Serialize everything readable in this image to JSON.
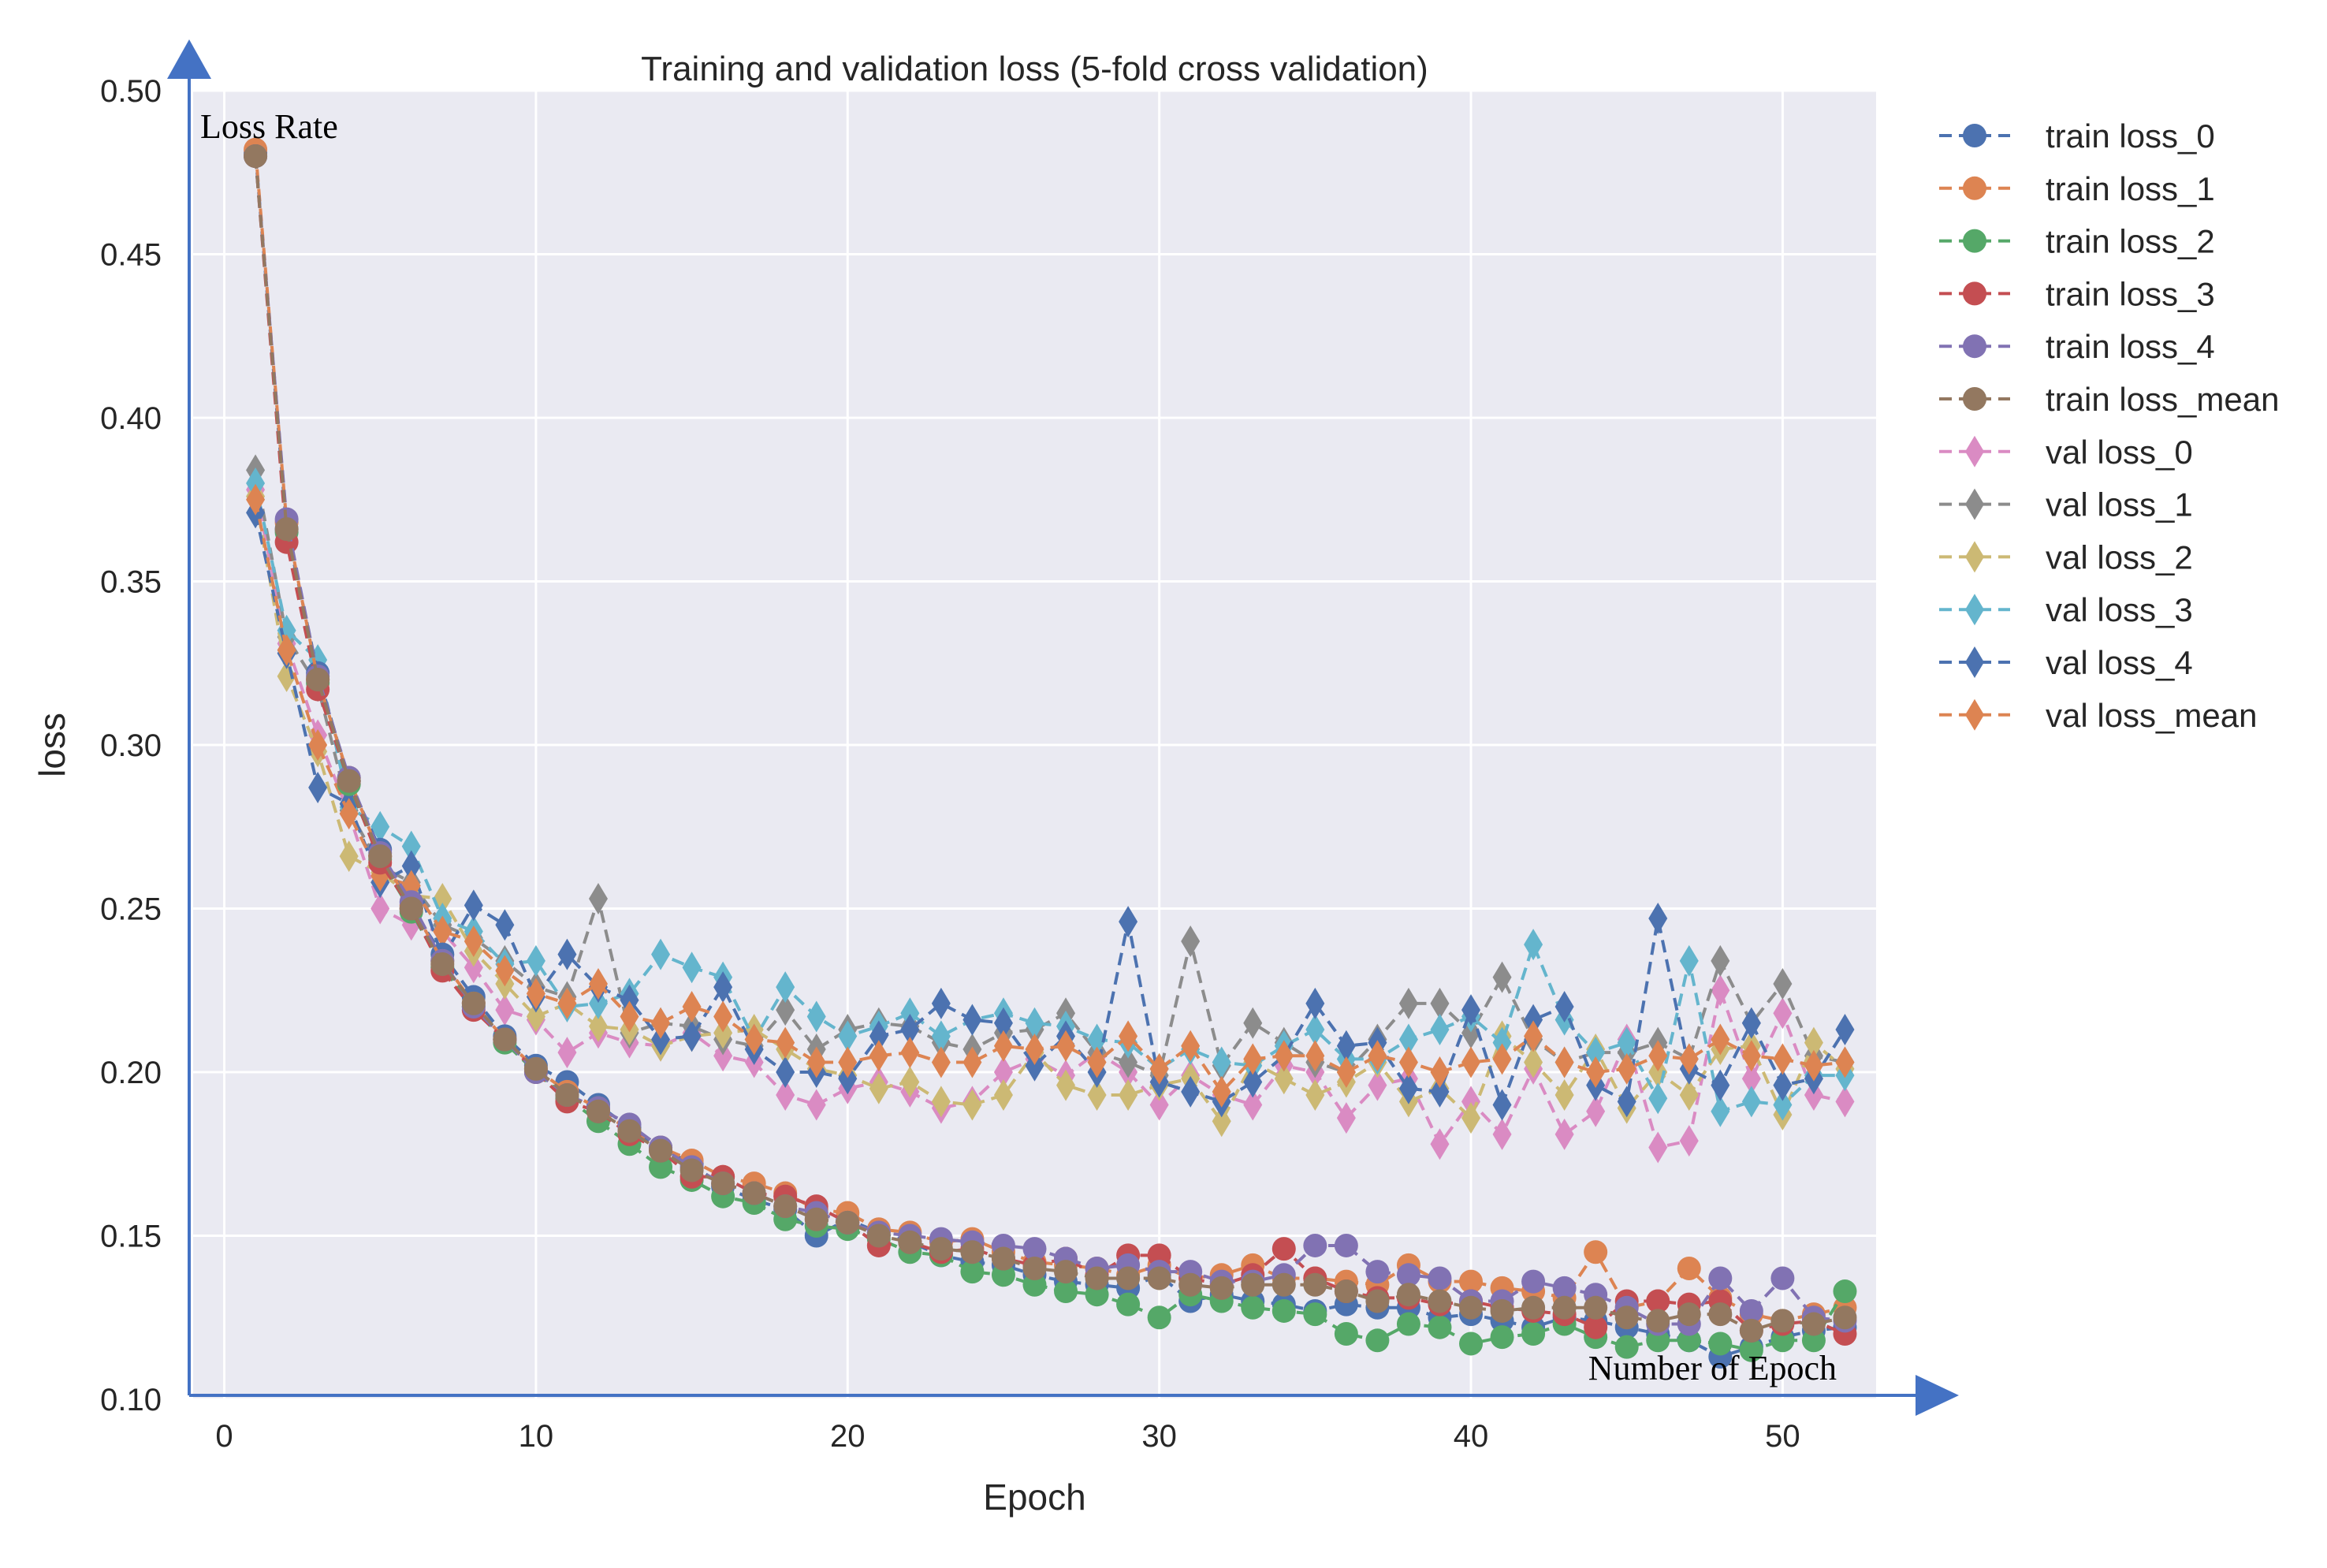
{
  "chart_data": {
    "type": "line",
    "title": "Training and validation loss (5-fold cross validation)",
    "xlabel": "Epoch",
    "ylabel": "loss",
    "xlim": [
      -1,
      53
    ],
    "ylim": [
      0.1,
      0.5
    ],
    "x_ticks": [
      0,
      10,
      20,
      30,
      40,
      50
    ],
    "y_ticks": [
      0.1,
      0.15,
      0.2,
      0.25,
      0.3,
      0.35,
      0.4,
      0.45,
      0.5
    ],
    "y_tick_labels": [
      "0.10",
      "0.15",
      "0.20",
      "0.25",
      "0.30",
      "0.35",
      "0.40",
      "0.45",
      "0.50"
    ],
    "grid": true,
    "legend_position": "outside-right",
    "annotations": {
      "y_axis_arrow_label": "Loss Rate",
      "x_axis_arrow_label": "Number of Epoch",
      "arrow_color": "#4472c4"
    },
    "x": [
      1,
      2,
      3,
      4,
      5,
      6,
      7,
      8,
      9,
      10,
      11,
      12,
      13,
      14,
      15,
      16,
      17,
      18,
      19,
      20,
      21,
      22,
      23,
      24,
      25,
      26,
      27,
      28,
      29,
      30,
      31,
      32,
      33,
      34,
      35,
      36,
      37,
      38,
      39,
      40,
      41,
      42,
      43,
      44,
      45,
      46,
      47,
      48,
      49,
      50,
      51,
      52
    ],
    "series": [
      {
        "name": "train loss_0",
        "color": "#4c72b0",
        "marker": "circle",
        "values": [
          0.481,
          0.366,
          0.322,
          0.289,
          0.268,
          0.25,
          0.236,
          0.223,
          0.211,
          0.202,
          0.197,
          0.19,
          0.183,
          0.177,
          0.172,
          0.165,
          0.161,
          0.158,
          0.15,
          0.155,
          0.151,
          0.148,
          0.144,
          0.142,
          0.141,
          0.138,
          0.136,
          0.135,
          0.134,
          0.138,
          0.13,
          0.132,
          0.13,
          0.129,
          0.127,
          0.129,
          0.128,
          0.128,
          0.125,
          0.126,
          0.124,
          0.122,
          0.125,
          0.124,
          0.122,
          0.12,
          0.118,
          0.113,
          0.116,
          0.119,
          0.121,
          0.122
        ]
      },
      {
        "name": "train loss_1",
        "color": "#dd8452",
        "marker": "circle",
        "values": [
          0.482,
          0.368,
          0.32,
          0.29,
          0.266,
          0.251,
          0.234,
          0.221,
          0.21,
          0.201,
          0.194,
          0.189,
          0.182,
          0.177,
          0.173,
          0.168,
          0.166,
          0.163,
          0.158,
          0.157,
          0.152,
          0.151,
          0.148,
          0.149,
          0.145,
          0.142,
          0.141,
          0.14,
          0.138,
          0.141,
          0.137,
          0.138,
          0.141,
          0.137,
          0.137,
          0.136,
          0.135,
          0.141,
          0.136,
          0.136,
          0.134,
          0.133,
          0.131,
          0.145,
          0.128,
          0.13,
          0.14,
          0.131,
          0.126,
          0.124,
          0.126,
          0.128
        ]
      },
      {
        "name": "train loss_2",
        "color": "#55a868",
        "marker": "circle",
        "values": [
          0.48,
          0.365,
          0.319,
          0.288,
          0.265,
          0.249,
          0.232,
          0.22,
          0.209,
          0.2,
          0.192,
          0.185,
          0.178,
          0.171,
          0.167,
          0.162,
          0.16,
          0.155,
          0.153,
          0.152,
          0.149,
          0.145,
          0.144,
          0.139,
          0.138,
          0.135,
          0.133,
          0.132,
          0.129,
          0.125,
          0.132,
          0.13,
          0.128,
          0.127,
          0.126,
          0.12,
          0.118,
          0.123,
          0.122,
          0.117,
          0.119,
          0.12,
          0.123,
          0.119,
          0.116,
          0.118,
          0.118,
          0.117,
          0.115,
          0.118,
          0.118,
          0.133
        ]
      },
      {
        "name": "train loss_3",
        "color": "#c44e52",
        "marker": "circle",
        "values": [
          0.48,
          0.362,
          0.317,
          0.289,
          0.264,
          0.25,
          0.231,
          0.219,
          0.21,
          0.2,
          0.191,
          0.188,
          0.181,
          0.176,
          0.168,
          0.168,
          0.163,
          0.162,
          0.159,
          0.154,
          0.147,
          0.148,
          0.145,
          0.146,
          0.143,
          0.141,
          0.143,
          0.138,
          0.144,
          0.144,
          0.137,
          0.135,
          0.138,
          0.146,
          0.137,
          0.133,
          0.131,
          0.131,
          0.129,
          0.13,
          0.128,
          0.127,
          0.126,
          0.122,
          0.13,
          0.13,
          0.129,
          0.13,
          0.121,
          0.123,
          0.124,
          0.12
        ]
      },
      {
        "name": "train loss_4",
        "color": "#8172b3",
        "marker": "circle",
        "values": [
          0.48,
          0.369,
          0.321,
          0.29,
          0.267,
          0.252,
          0.234,
          0.22,
          0.21,
          0.2,
          0.193,
          0.189,
          0.184,
          0.177,
          0.171,
          0.166,
          0.163,
          0.159,
          0.157,
          0.154,
          0.151,
          0.15,
          0.149,
          0.148,
          0.147,
          0.146,
          0.143,
          0.14,
          0.141,
          0.139,
          0.139,
          0.136,
          0.136,
          0.138,
          0.147,
          0.147,
          0.139,
          0.138,
          0.137,
          0.13,
          0.13,
          0.136,
          0.134,
          0.132,
          0.128,
          0.123,
          0.123,
          0.137,
          0.127,
          0.137,
          0.125,
          0.124
        ]
      },
      {
        "name": "train loss_mean",
        "color": "#937860",
        "marker": "circle",
        "values": [
          0.48,
          0.366,
          0.32,
          0.289,
          0.266,
          0.25,
          0.233,
          0.221,
          0.21,
          0.201,
          0.193,
          0.188,
          0.182,
          0.176,
          0.17,
          0.166,
          0.163,
          0.159,
          0.155,
          0.154,
          0.15,
          0.148,
          0.146,
          0.145,
          0.143,
          0.14,
          0.139,
          0.137,
          0.137,
          0.137,
          0.135,
          0.134,
          0.135,
          0.135,
          0.135,
          0.133,
          0.13,
          0.132,
          0.13,
          0.128,
          0.127,
          0.128,
          0.128,
          0.128,
          0.125,
          0.124,
          0.126,
          0.126,
          0.121,
          0.124,
          0.123,
          0.125
        ]
      },
      {
        "name": "val loss_0",
        "color": "#da8bc3",
        "marker": "diamond",
        "values": [
          0.378,
          0.331,
          0.303,
          0.279,
          0.25,
          0.245,
          0.243,
          0.232,
          0.219,
          0.216,
          0.206,
          0.212,
          0.209,
          0.208,
          0.212,
          0.205,
          0.203,
          0.193,
          0.19,
          0.195,
          0.197,
          0.194,
          0.189,
          0.191,
          0.2,
          0.204,
          0.199,
          0.206,
          0.2,
          0.19,
          0.199,
          0.193,
          0.19,
          0.202,
          0.2,
          0.186,
          0.196,
          0.198,
          0.178,
          0.191,
          0.181,
          0.201,
          0.181,
          0.188,
          0.21,
          0.177,
          0.179,
          0.225,
          0.198,
          0.218,
          0.193,
          0.191
        ]
      },
      {
        "name": "val loss_1",
        "color": "#8c8c8c",
        "marker": "diamond",
        "values": [
          0.384,
          0.333,
          0.318,
          0.28,
          0.263,
          0.258,
          0.245,
          0.241,
          0.234,
          0.226,
          0.223,
          0.253,
          0.212,
          0.215,
          0.214,
          0.21,
          0.208,
          0.219,
          0.207,
          0.213,
          0.215,
          0.214,
          0.209,
          0.207,
          0.212,
          0.213,
          0.218,
          0.206,
          0.203,
          0.199,
          0.24,
          0.202,
          0.215,
          0.209,
          0.203,
          0.2,
          0.21,
          0.221,
          0.221,
          0.212,
          0.229,
          0.21,
          0.203,
          0.206,
          0.206,
          0.209,
          0.204,
          0.234,
          0.215,
          0.227,
          0.205,
          0.203
        ]
      },
      {
        "name": "val loss_2",
        "color": "#ccb974",
        "marker": "diamond",
        "values": [
          0.376,
          0.321,
          0.298,
          0.266,
          0.261,
          0.254,
          0.253,
          0.237,
          0.227,
          0.217,
          0.221,
          0.214,
          0.213,
          0.208,
          0.211,
          0.212,
          0.213,
          0.207,
          0.201,
          0.199,
          0.195,
          0.197,
          0.191,
          0.19,
          0.193,
          0.206,
          0.196,
          0.193,
          0.193,
          0.196,
          0.198,
          0.185,
          0.203,
          0.198,
          0.193,
          0.197,
          0.203,
          0.191,
          0.195,
          0.186,
          0.211,
          0.203,
          0.193,
          0.207,
          0.189,
          0.2,
          0.193,
          0.207,
          0.208,
          0.187,
          0.209,
          0.201
        ]
      },
      {
        "name": "val loss_3",
        "color": "#64b5cd",
        "marker": "diamond",
        "values": [
          0.38,
          0.335,
          0.326,
          0.281,
          0.275,
          0.269,
          0.247,
          0.243,
          0.233,
          0.234,
          0.22,
          0.221,
          0.224,
          0.236,
          0.232,
          0.229,
          0.21,
          0.226,
          0.217,
          0.211,
          0.214,
          0.218,
          0.211,
          0.216,
          0.218,
          0.215,
          0.214,
          0.21,
          0.209,
          0.201,
          0.207,
          0.203,
          0.202,
          0.208,
          0.213,
          0.204,
          0.204,
          0.21,
          0.213,
          0.217,
          0.209,
          0.239,
          0.216,
          0.206,
          0.209,
          0.192,
          0.234,
          0.188,
          0.191,
          0.19,
          0.199,
          0.199
        ]
      },
      {
        "name": "val loss_4",
        "color": "#4c72b0",
        "marker": "diamond",
        "values": [
          0.371,
          0.328,
          0.287,
          0.282,
          0.258,
          0.263,
          0.235,
          0.251,
          0.245,
          0.223,
          0.236,
          0.226,
          0.222,
          0.21,
          0.211,
          0.226,
          0.207,
          0.2,
          0.2,
          0.198,
          0.211,
          0.213,
          0.221,
          0.216,
          0.215,
          0.202,
          0.211,
          0.2,
          0.246,
          0.197,
          0.194,
          0.191,
          0.197,
          0.205,
          0.221,
          0.208,
          0.209,
          0.195,
          0.194,
          0.219,
          0.19,
          0.216,
          0.22,
          0.196,
          0.191,
          0.247,
          0.201,
          0.196,
          0.215,
          0.196,
          0.198,
          0.213
        ]
      },
      {
        "name": "val loss_mean",
        "color": "#dd8452",
        "marker": "diamond",
        "values": [
          0.375,
          0.329,
          0.3,
          0.279,
          0.26,
          0.257,
          0.243,
          0.24,
          0.231,
          0.224,
          0.221,
          0.227,
          0.217,
          0.215,
          0.22,
          0.217,
          0.21,
          0.209,
          0.203,
          0.203,
          0.205,
          0.206,
          0.203,
          0.203,
          0.208,
          0.207,
          0.208,
          0.203,
          0.211,
          0.201,
          0.208,
          0.194,
          0.204,
          0.205,
          0.205,
          0.2,
          0.205,
          0.203,
          0.2,
          0.203,
          0.204,
          0.211,
          0.203,
          0.2,
          0.201,
          0.205,
          0.204,
          0.21,
          0.205,
          0.204,
          0.202,
          0.203
        ]
      }
    ]
  }
}
